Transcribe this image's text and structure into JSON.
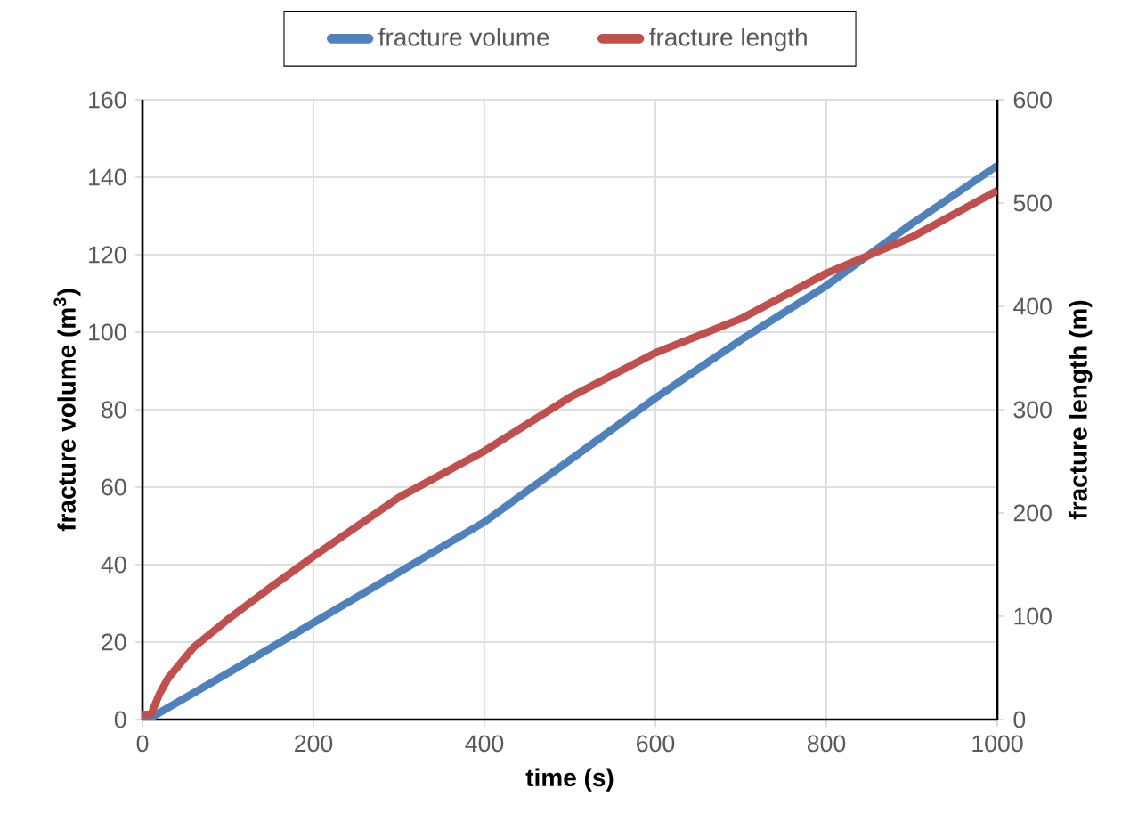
{
  "chart_data": {
    "type": "line",
    "xlabel": "time (s)",
    "ylabel": "fracture volume (m$^{3}$)",
    "y2label": "fracture length (m)",
    "series": [
      {
        "name": "fracture volume",
        "color": "#4f81bd",
        "axis": "y",
        "x": [
          0,
          10,
          100,
          200,
          300,
          400,
          500,
          600,
          700,
          800,
          900,
          1000
        ],
        "values": [
          0.5,
          0.5,
          12,
          25,
          38,
          51,
          67,
          83,
          98,
          112,
          128,
          143
        ]
      },
      {
        "name": "fracture length",
        "color": "#c0504d",
        "axis": "y2",
        "x": [
          0,
          10,
          20,
          30,
          60,
          100,
          150,
          200,
          300,
          400,
          500,
          600,
          700,
          800,
          900,
          1000
        ],
        "values": [
          5,
          5,
          25,
          40,
          70,
          97,
          128,
          158,
          215,
          260,
          312,
          355,
          388,
          432,
          467,
          512
        ]
      }
    ],
    "xlim": [
      0,
      1000
    ],
    "ylim": [
      0,
      160
    ],
    "y2lim": [
      0,
      600
    ],
    "xticks": [
      0,
      200,
      400,
      600,
      800,
      1000
    ],
    "yticks": [
      0,
      20,
      40,
      60,
      80,
      100,
      120,
      140,
      160
    ],
    "y2ticks": [
      0,
      100,
      200,
      300,
      400,
      500,
      600
    ],
    "grid": true,
    "legend": "top"
  }
}
